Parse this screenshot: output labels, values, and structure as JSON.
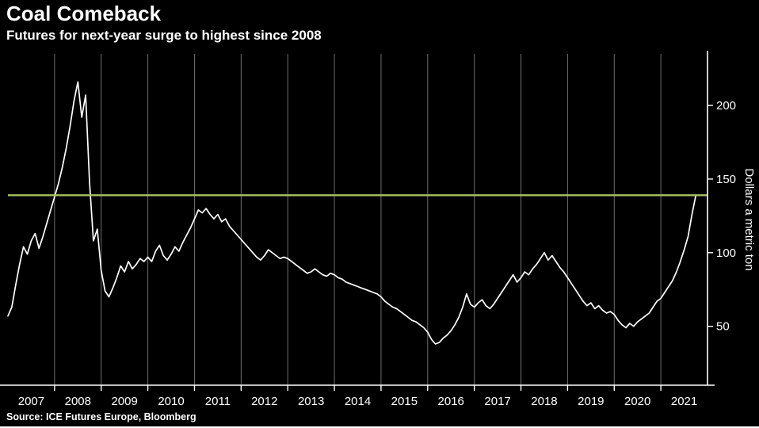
{
  "chart_data": {
    "type": "line",
    "title": "Coal Comeback",
    "subtitle": "Futures for next-year surge to highest since 2008",
    "source": "Source: ICE Futures Europe, Bloomberg",
    "ylabel": "Dollars a metric ton",
    "x_start_year": 2007,
    "x_end_year": 2022,
    "x_tick_labels": [
      "2007",
      "2008",
      "2009",
      "2010",
      "2011",
      "2012",
      "2013",
      "2014",
      "2015",
      "2016",
      "2017",
      "2018",
      "2019",
      "2020",
      "2021"
    ],
    "yticks": [
      50,
      100,
      150,
      200
    ],
    "ylim": [
      10,
      235
    ],
    "grid": "vertical-year-lines",
    "legend": "none",
    "reference_line": {
      "value": 139,
      "color": "#a9c05f",
      "meaning": "current price level, highest since 2008"
    },
    "series": [
      {
        "name": "Next-year coal futures price",
        "color": "#ffffff",
        "x_start": 2007.0,
        "x_step": "monthly",
        "values": [
          57,
          63,
          78,
          92,
          104,
          99,
          108,
          113,
          103,
          111,
          120,
          129,
          138,
          147,
          158,
          171,
          186,
          203,
          216,
          192,
          207,
          148,
          108,
          116,
          88,
          74,
          70,
          76,
          83,
          91,
          87,
          94,
          89,
          92,
          96,
          94,
          97,
          94,
          101,
          105,
          98,
          95,
          99,
          104,
          101,
          107,
          112,
          117,
          123,
          129,
          127,
          130,
          126,
          123,
          126,
          121,
          123,
          118,
          115,
          112,
          109,
          106,
          103,
          100,
          97,
          95,
          98,
          102,
          100,
          98,
          96,
          97,
          96,
          94,
          92,
          90,
          88,
          86,
          87,
          89,
          87,
          85,
          84,
          86,
          85,
          83,
          82,
          80,
          79,
          78,
          77,
          76,
          75,
          74,
          73,
          72,
          70,
          67,
          65,
          63,
          62,
          60,
          58,
          56,
          54,
          53,
          51,
          49,
          46,
          41,
          38,
          39,
          42,
          44,
          47,
          51,
          56,
          63,
          72,
          65,
          63,
          66,
          68,
          64,
          62,
          65,
          69,
          73,
          77,
          81,
          85,
          80,
          83,
          87,
          85,
          89,
          92,
          96,
          100,
          95,
          98,
          94,
          90,
          87,
          83,
          79,
          75,
          71,
          67,
          64,
          66,
          62,
          64,
          61,
          59,
          60,
          58,
          54,
          51,
          49,
          52,
          50,
          53,
          55,
          57,
          59,
          63,
          67,
          69,
          73,
          77,
          81,
          87,
          94,
          102,
          111,
          126,
          139
        ]
      }
    ],
    "colors": {
      "background": "#000000",
      "line": "#ffffff",
      "reference": "#a9c05f",
      "grid": "#6e6e6e",
      "axis": "#ffffff",
      "text": "#ffffff"
    }
  }
}
